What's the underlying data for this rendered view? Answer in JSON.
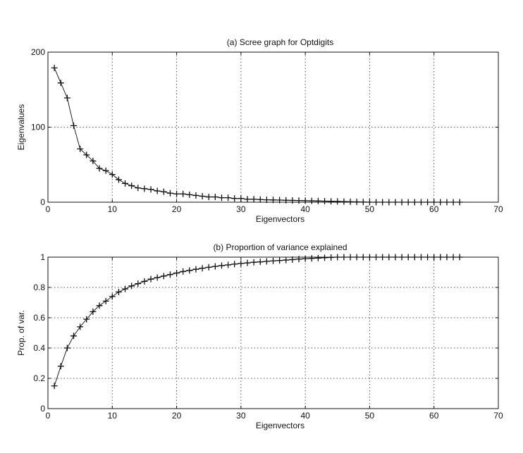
{
  "chart_data": [
    {
      "type": "line",
      "title": "(a) Scree graph for Optdigits",
      "xlabel": "Eigenvectors",
      "ylabel": "Eigenvalues",
      "xlim": [
        0,
        70
      ],
      "ylim": [
        0,
        200
      ],
      "xticks": [
        "0",
        "10",
        "20",
        "30",
        "40",
        "50",
        "60",
        "70"
      ],
      "yticks": [
        "0",
        "100",
        "200"
      ],
      "grid": true,
      "marker": "+",
      "x": [
        1,
        2,
        3,
        4,
        5,
        6,
        7,
        8,
        9,
        10,
        11,
        12,
        13,
        14,
        15,
        16,
        17,
        18,
        19,
        20,
        21,
        22,
        23,
        24,
        25,
        26,
        27,
        28,
        29,
        30,
        31,
        32,
        33,
        34,
        35,
        36,
        37,
        38,
        39,
        40,
        41,
        42,
        43,
        44,
        45,
        46,
        47,
        48,
        49,
        50,
        51,
        52,
        53,
        54,
        55,
        56,
        57,
        58,
        59,
        60,
        61,
        62,
        63,
        64
      ],
      "y": [
        179,
        159,
        139,
        102,
        71,
        63,
        55,
        45,
        42,
        37,
        30,
        25,
        22,
        19,
        18,
        17,
        15,
        14,
        12,
        11,
        11,
        10,
        9,
        8,
        7,
        7,
        6,
        6,
        5,
        5,
        4,
        4,
        3.5,
        3.2,
        3,
        2.8,
        2.6,
        2.4,
        2.2,
        2,
        1.8,
        1.6,
        1.4,
        1.2,
        1,
        0.8,
        0.6,
        0.4,
        0.2,
        0,
        0,
        0,
        0,
        0,
        0,
        0,
        0,
        0,
        0,
        0,
        0,
        0,
        0,
        0
      ]
    },
    {
      "type": "line",
      "title": "(b) Proportion of variance explained",
      "xlabel": "Eigenvectors",
      "ylabel": "Prop. of var.",
      "xlim": [
        0,
        70
      ],
      "ylim": [
        0,
        1
      ],
      "xticks": [
        "0",
        "10",
        "20",
        "30",
        "40",
        "50",
        "60",
        "70"
      ],
      "yticks": [
        "0",
        "0.2",
        "0.4",
        "0.6",
        "0.8",
        "1"
      ],
      "grid": true,
      "marker": "+",
      "x": [
        1,
        2,
        3,
        4,
        5,
        6,
        7,
        8,
        9,
        10,
        11,
        12,
        13,
        14,
        15,
        16,
        17,
        18,
        19,
        20,
        21,
        22,
        23,
        24,
        25,
        26,
        27,
        28,
        29,
        30,
        31,
        32,
        33,
        34,
        35,
        36,
        37,
        38,
        39,
        40,
        41,
        42,
        43,
        44,
        45,
        46,
        47,
        48,
        49,
        50,
        51,
        52,
        53,
        54,
        55,
        56,
        57,
        58,
        59,
        60,
        61,
        62,
        63,
        64
      ],
      "y": [
        0.15,
        0.28,
        0.4,
        0.48,
        0.54,
        0.59,
        0.64,
        0.68,
        0.71,
        0.74,
        0.77,
        0.79,
        0.81,
        0.825,
        0.84,
        0.855,
        0.865,
        0.875,
        0.885,
        0.895,
        0.905,
        0.912,
        0.92,
        0.927,
        0.933,
        0.939,
        0.944,
        0.949,
        0.954,
        0.958,
        0.962,
        0.966,
        0.969,
        0.972,
        0.975,
        0.978,
        0.981,
        0.984,
        0.987,
        0.99,
        0.992,
        0.994,
        0.996,
        0.998,
        1,
        1,
        1,
        1,
        1,
        1,
        1,
        1,
        1,
        1,
        1,
        1,
        1,
        1,
        1,
        1,
        1,
        1,
        1,
        1
      ]
    }
  ]
}
